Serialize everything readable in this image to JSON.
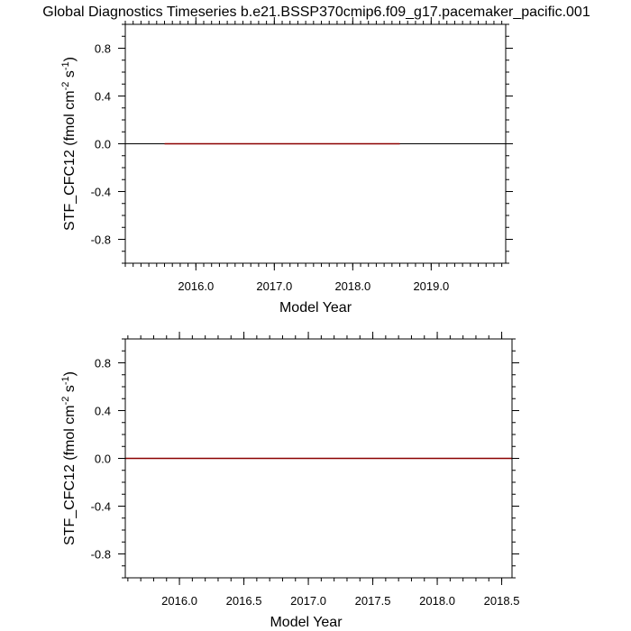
{
  "title": "Global Diagnostics Timeseries b.e21.BSSP370cmip6.f09_g17.pacemaker_pacific.001",
  "chart_data": [
    {
      "type": "line",
      "ylabel": "STF_CFC12 (fmol cm-2 s-1)",
      "ylabel_parts": {
        "pre": "STF_CFC12 (fmol cm",
        "sup1": "-2",
        "mid": " s",
        "sup2": "-1",
        "post": ")"
      },
      "xlabel": "Model Year",
      "xlim": [
        2015.1,
        2019.95
      ],
      "ylim": [
        -1.0,
        1.0
      ],
      "xticks": [
        2016.0,
        2017.0,
        2018.0,
        2019.0
      ],
      "xtick_labels": [
        "2016.0",
        "2017.0",
        "2018.0",
        "2019.0"
      ],
      "x_minor_step": 0.1,
      "yticks": [
        0.8,
        0.4,
        0.0,
        -0.4,
        -0.8
      ],
      "ytick_labels": [
        "0.8",
        "0.4",
        "0.0",
        "-0.4",
        "-0.8"
      ],
      "y_minor_step": 0.1,
      "reference_line": 0.0,
      "series": [
        {
          "color": "#8b0000",
          "x": [
            2015.6,
            2018.6
          ],
          "y": [
            0.0,
            0.0
          ]
        }
      ]
    },
    {
      "type": "line",
      "ylabel": "STF_CFC12 (fmol cm-2 s-1)",
      "ylabel_parts": {
        "pre": "STF_CFC12 (fmol cm",
        "sup1": "-2",
        "mid": " s",
        "sup2": "-1",
        "post": ")"
      },
      "xlabel": "Model Year",
      "xlim": [
        2015.58,
        2018.58
      ],
      "ylim": [
        -1.0,
        1.0
      ],
      "xticks": [
        2016.0,
        2016.5,
        2017.0,
        2017.5,
        2018.0,
        2018.5
      ],
      "xtick_labels": [
        "2016.0",
        "2016.5",
        "2017.0",
        "2017.5",
        "2018.0",
        "2018.5"
      ],
      "x_minor_step": 0.1,
      "yticks": [
        0.8,
        0.4,
        0.0,
        -0.4,
        -0.8
      ],
      "ytick_labels": [
        "0.8",
        "0.4",
        "0.0",
        "-0.4",
        "-0.8"
      ],
      "y_minor_step": 0.1,
      "reference_line": 0.0,
      "series": [
        {
          "color": "#8b0000",
          "x": [
            2015.58,
            2018.58
          ],
          "y": [
            0.0,
            0.0
          ]
        }
      ]
    }
  ]
}
